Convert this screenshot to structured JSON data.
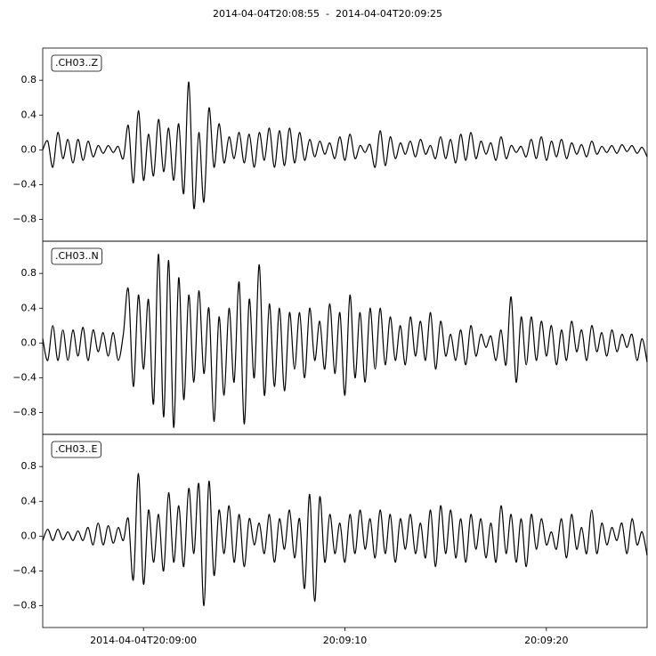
{
  "chart_data": {
    "type": "line",
    "title": "2014-04-04T20:08:55  -  2014-04-04T20:09:25",
    "x": [
      0,
      0.25,
      0.5,
      0.75,
      1,
      1.25,
      1.5,
      1.75,
      2,
      2.25,
      2.5,
      2.75,
      3,
      3.25,
      3.5,
      3.75,
      4,
      4.25,
      4.5,
      4.75,
      5,
      5.25,
      5.5,
      5.75,
      6,
      6.25,
      6.5,
      6.75,
      7,
      7.25,
      7.5,
      7.75,
      8,
      8.25,
      8.5,
      8.75,
      9,
      9.25,
      9.5,
      9.75,
      10,
      10.25,
      10.5,
      10.75,
      11,
      11.25,
      11.5,
      11.75,
      12,
      12.25,
      12.5,
      12.75,
      13,
      13.25,
      13.5,
      13.75,
      14,
      14.25,
      14.5,
      14.75,
      15,
      15.25,
      15.5,
      15.75,
      16,
      16.25,
      16.5,
      16.75,
      17,
      17.25,
      17.5,
      17.75,
      18,
      18.25,
      18.5,
      18.75,
      19,
      19.25,
      19.5,
      19.75,
      20,
      20.25,
      20.5,
      20.75,
      21,
      21.25,
      21.5,
      21.75,
      22,
      22.25,
      22.5,
      22.75,
      23,
      23.25,
      23.5,
      23.75,
      24,
      24.25,
      24.5,
      24.75,
      25,
      25.25,
      25.5,
      25.75,
      26,
      26.25,
      26.5,
      26.75,
      27,
      27.25,
      27.5,
      27.75,
      28,
      28.25,
      28.5,
      28.75,
      29,
      29.25,
      29.5,
      29.75,
      30
    ],
    "xlim": [
      0,
      30
    ],
    "xticks": [
      {
        "value": 5,
        "label": "2014-04-04T20:09:00"
      },
      {
        "value": 15,
        "label": "20:09:10"
      },
      {
        "value": 25,
        "label": "20:09:20"
      }
    ],
    "ylim": [
      -1.05,
      1.17
    ],
    "yticks": [
      {
        "value": -0.8,
        "label": "−0.8"
      },
      {
        "value": -0.4,
        "label": "−0.4"
      },
      {
        "value": 0,
        "label": "0.0"
      },
      0.4,
      0.8
    ],
    "series": [
      {
        "name": ".CH03..Z",
        "color": "#000000",
        "values": [
          0,
          0.1,
          -0.2,
          0.2,
          -0.1,
          0.12,
          -0.15,
          0.12,
          -0.12,
          0.1,
          -0.08,
          0.05,
          -0.04,
          0.05,
          -0.03,
          0.04,
          -0.1,
          0.28,
          -0.38,
          0.45,
          -0.35,
          0.18,
          -0.3,
          0.35,
          -0.25,
          0.25,
          -0.35,
          0.3,
          -0.5,
          0.78,
          -0.67,
          0.2,
          -0.6,
          0.48,
          -0.2,
          0.3,
          -0.15,
          0.15,
          -0.1,
          0.2,
          -0.15,
          0.18,
          -0.2,
          0.2,
          -0.12,
          0.25,
          -0.2,
          0.22,
          -0.18,
          0.25,
          -0.15,
          0.2,
          -0.12,
          0.12,
          -0.08,
          0.1,
          -0.05,
          0.08,
          -0.1,
          0.15,
          -0.12,
          0.18,
          -0.1,
          0.05,
          -0.03,
          0.06,
          -0.2,
          0.22,
          -0.18,
          0.15,
          -0.1,
          0.08,
          -0.05,
          0.1,
          -0.08,
          0.12,
          -0.05,
          0.05,
          -0.1,
          0.15,
          -0.1,
          0.12,
          -0.15,
          0.18,
          -0.12,
          0.2,
          -0.1,
          0.1,
          -0.05,
          0.08,
          -0.12,
          0.15,
          -0.1,
          0.05,
          -0.03,
          0.04,
          -0.08,
          0.12,
          -0.1,
          0.15,
          -0.12,
          0.1,
          -0.08,
          0.12,
          -0.1,
          0.08,
          -0.05,
          0.06,
          -0.08,
          0.1,
          -0.05,
          0.04,
          -0.03,
          0.05,
          -0.04,
          0.06,
          -0.02,
          0.05,
          -0.04,
          0.03,
          -0.08
        ]
      },
      {
        "name": ".CH03..N",
        "color": "#000000",
        "values": [
          0.05,
          -0.2,
          0.2,
          -0.2,
          0.15,
          -0.2,
          0.15,
          -0.15,
          0.18,
          -0.2,
          0.15,
          -0.1,
          0.12,
          -0.15,
          0.12,
          -0.2,
          0.1,
          0.62,
          -0.5,
          0.55,
          -0.3,
          0.5,
          -0.7,
          1.02,
          -0.85,
          0.95,
          -0.97,
          0.75,
          -0.65,
          0.55,
          -0.45,
          0.6,
          -0.35,
          0.4,
          -0.9,
          0.3,
          -0.6,
          0.4,
          -0.45,
          0.7,
          -0.93,
          0.5,
          -0.4,
          0.9,
          -0.6,
          0.45,
          -0.5,
          0.4,
          -0.55,
          0.35,
          -0.3,
          0.35,
          -0.4,
          0.4,
          -0.2,
          0.25,
          -0.3,
          0.45,
          -0.35,
          0.35,
          -0.6,
          0.55,
          -0.4,
          0.35,
          -0.45,
          0.4,
          -0.3,
          0.4,
          -0.25,
          0.3,
          -0.2,
          0.2,
          -0.25,
          0.3,
          -0.15,
          0.25,
          -0.2,
          0.35,
          -0.3,
          0.25,
          -0.15,
          0.1,
          -0.2,
          0.15,
          -0.25,
          0.2,
          -0.15,
          0.1,
          -0.05,
          0.08,
          -0.2,
          0.15,
          -0.25,
          0.53,
          -0.45,
          0.3,
          -0.25,
          0.3,
          -0.2,
          0.25,
          -0.15,
          0.2,
          -0.25,
          0.15,
          -0.2,
          0.25,
          -0.1,
          0.15,
          -0.2,
          0.2,
          -0.1,
          0.12,
          -0.15,
          0.15,
          -0.1,
          0.1,
          -0.05,
          0.1,
          -0.2,
          0.05,
          -0.22
        ]
      },
      {
        "name": ".CH03..E",
        "color": "#000000",
        "values": [
          -0.05,
          0.08,
          -0.05,
          0.08,
          -0.04,
          0.05,
          -0.05,
          0.06,
          -0.05,
          0.1,
          -0.1,
          0.15,
          -0.1,
          0.12,
          -0.08,
          0.1,
          -0.05,
          0.2,
          -0.5,
          0.72,
          -0.55,
          0.3,
          -0.3,
          0.25,
          -0.4,
          0.5,
          -0.3,
          0.35,
          -0.35,
          0.55,
          -0.2,
          0.6,
          -0.8,
          0.63,
          -0.45,
          0.3,
          -0.2,
          0.35,
          -0.3,
          0.25,
          -0.35,
          0.2,
          -0.1,
          0.15,
          -0.2,
          0.25,
          -0.3,
          0.2,
          -0.15,
          0.3,
          -0.25,
          0.2,
          -0.6,
          0.48,
          -0.75,
          0.45,
          -0.3,
          0.25,
          -0.2,
          0.15,
          -0.3,
          0.25,
          -0.2,
          0.3,
          -0.15,
          0.2,
          -0.25,
          0.3,
          -0.2,
          0.25,
          -0.3,
          0.2,
          -0.15,
          0.25,
          -0.2,
          0.15,
          -0.25,
          0.3,
          -0.35,
          0.35,
          -0.2,
          0.3,
          -0.25,
          0.2,
          -0.3,
          0.25,
          -0.15,
          0.2,
          -0.25,
          0.15,
          -0.3,
          0.35,
          -0.2,
          0.25,
          -0.3,
          0.2,
          -0.35,
          0.25,
          -0.15,
          0.2,
          -0.1,
          0.05,
          -0.15,
          0.2,
          -0.25,
          0.25,
          -0.15,
          0.1,
          -0.2,
          0.3,
          -0.2,
          0.15,
          -0.1,
          0.1,
          -0.05,
          0.15,
          -0.2,
          0.2,
          -0.1,
          0.05,
          -0.22
        ]
      }
    ]
  }
}
